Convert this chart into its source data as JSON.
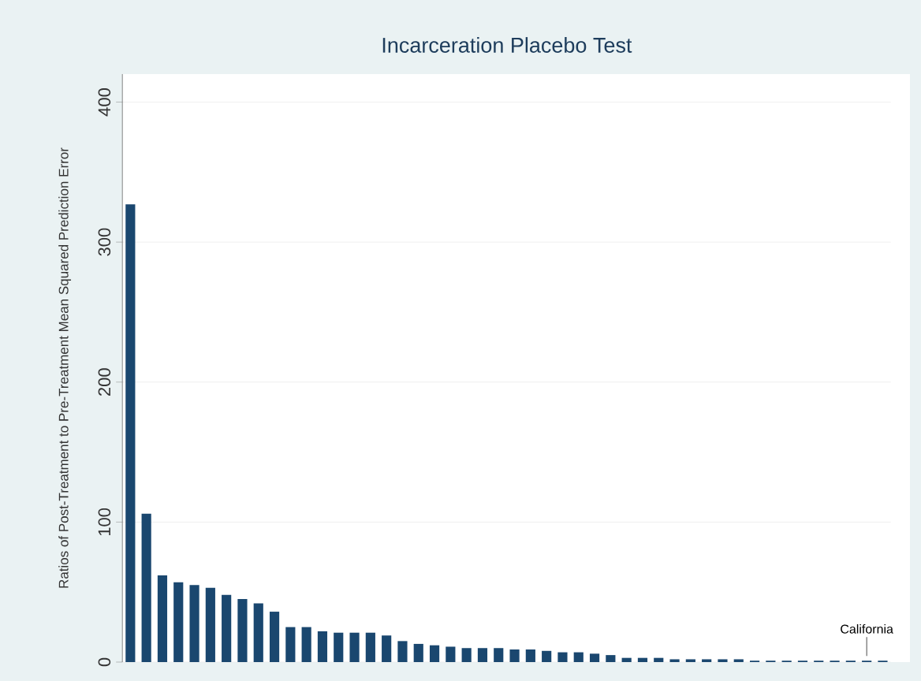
{
  "chart_data": {
    "type": "bar",
    "title": "Incarceration Placebo Test",
    "ylabel": "Ratios of Post-Treatment to Pre-Treatment Mean Squared Prediction Error",
    "categories": [
      null,
      null,
      null,
      null,
      null,
      null,
      null,
      null,
      null,
      null,
      null,
      null,
      null,
      null,
      null,
      null,
      null,
      null,
      null,
      null,
      null,
      null,
      null,
      null,
      null,
      null,
      null,
      null,
      null,
      null,
      null,
      null,
      null,
      null,
      null,
      null,
      null,
      null,
      null,
      null,
      null,
      null,
      null,
      null,
      null,
      null,
      null,
      null
    ],
    "values": [
      327,
      106,
      62,
      57,
      55,
      53,
      48,
      45,
      42,
      36,
      25,
      25,
      22,
      21,
      21,
      21,
      19,
      15,
      13,
      12,
      11,
      10,
      10,
      10,
      9,
      9,
      8,
      7,
      7,
      6,
      5,
      3,
      3,
      3,
      2,
      2,
      2,
      2,
      2,
      1,
      1,
      1,
      1,
      1,
      1,
      1,
      1,
      1
    ],
    "value_labels": [
      null,
      null,
      null,
      null,
      null,
      null,
      null,
      null,
      null,
      null,
      null,
      null,
      null,
      null,
      null,
      null,
      null,
      null,
      null,
      null,
      null,
      null,
      null,
      null,
      null,
      null,
      null,
      null,
      null,
      null,
      null,
      null,
      null,
      null,
      null,
      null,
      null,
      null,
      null,
      null,
      null,
      null,
      null,
      null,
      null,
      null,
      "California",
      null
    ],
    "color": "#1a476f",
    "ylim": [
      0,
      420
    ],
    "yticks": [
      0,
      100,
      200,
      300,
      400
    ],
    "grid": "y"
  }
}
